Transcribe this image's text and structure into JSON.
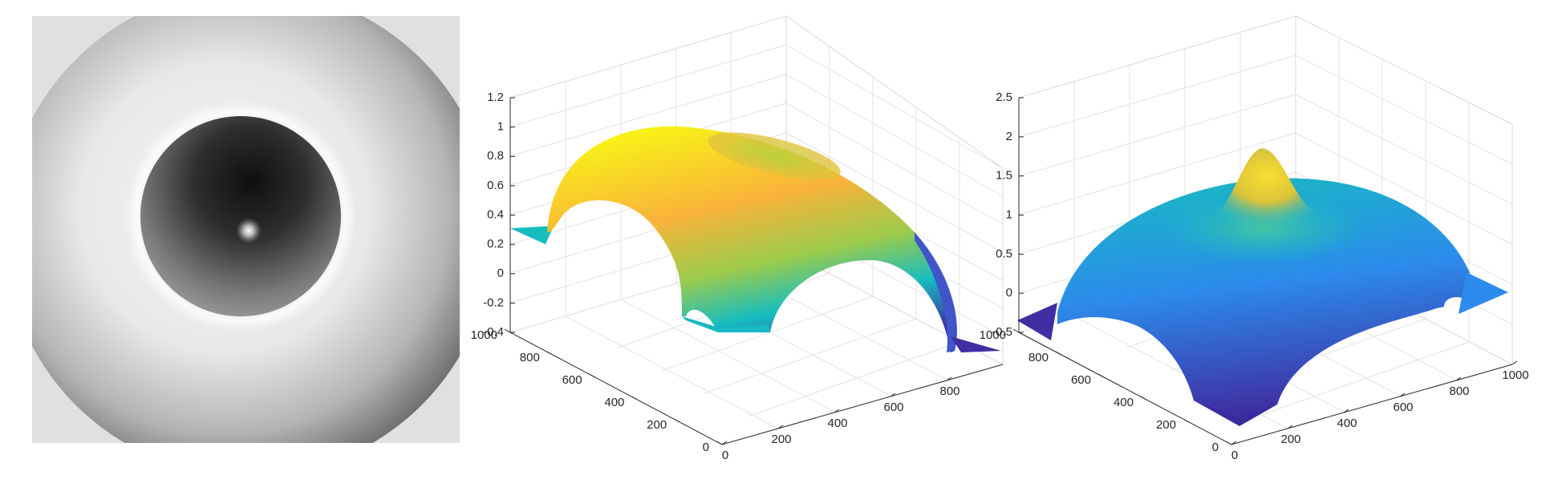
{
  "chart_data": [
    {
      "type": "heatmap",
      "colormap": "gray",
      "description_visual": "grayscale circular disk with dark central ring and bright point"
    },
    {
      "type": "surface",
      "colormap": "parula",
      "x_ticks": [
        "0",
        "200",
        "400",
        "600",
        "800"
      ],
      "y_ticks": [
        "0",
        "200",
        "400",
        "600",
        "800",
        "1000"
      ],
      "z_ticks": [
        "-0.4",
        "-0.2",
        "0",
        "0.2",
        "0.4",
        "0.6",
        "0.8",
        "1",
        "1.2"
      ],
      "xlim": [
        0,
        1000
      ],
      "ylim": [
        0,
        1000
      ],
      "zlim": [
        -0.4,
        1.2
      ],
      "grid": true
    },
    {
      "type": "surface",
      "colormap": "parula",
      "x_ticks": [
        "0",
        "200",
        "400",
        "600",
        "800",
        "1000"
      ],
      "y_ticks": [
        "0",
        "200",
        "400",
        "600",
        "800",
        "1000"
      ],
      "z_ticks": [
        "-0.5",
        "0",
        "0.5",
        "1",
        "1.5",
        "2",
        "2.5"
      ],
      "xlim": [
        0,
        1000
      ],
      "ylim": [
        0,
        1000
      ],
      "zlim": [
        -0.5,
        2.5
      ],
      "grid": true
    }
  ],
  "colors": {
    "yellow": "#f8f018",
    "orange": "#f9b33a",
    "green": "#7ec85c",
    "teal": "#16bdbf",
    "blue": "#2c8bec",
    "indigo": "#3f2fa3"
  }
}
